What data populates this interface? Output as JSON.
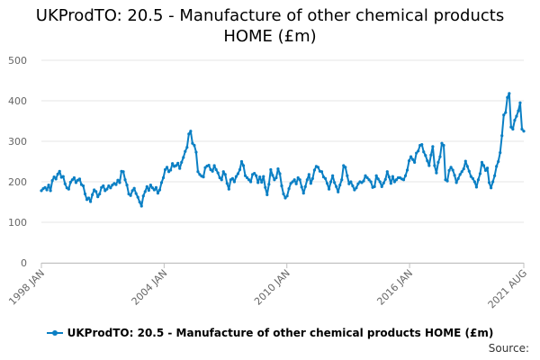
{
  "title": {
    "line1": "UKProdTO: 20.5 - Manufacture of other chemical products",
    "line2": "HOME (£m)"
  },
  "source_label": "Source:",
  "colors": {
    "series": "#0a7fc4",
    "grid": "#e6e6e6",
    "axis": "#666666",
    "title": "#000000"
  },
  "chart_data": {
    "type": "line",
    "title": "UKProdTO: 20.5 - Manufacture of other chemical products HOME (£m)",
    "xlabel": "",
    "ylabel": "",
    "ylim": [
      0,
      500
    ],
    "yticks": [
      0,
      100,
      200,
      300,
      400,
      500
    ],
    "x_start": "1998-01",
    "x_end": "2021-08",
    "xticks": [
      {
        "date": "1998-01",
        "label": "1998 JAN"
      },
      {
        "date": "2004-01",
        "label": "2004 JAN"
      },
      {
        "date": "2010-01",
        "label": "2010 JAN"
      },
      {
        "date": "2016-01",
        "label": "2016 JAN"
      },
      {
        "date": "2021-08",
        "label": "2021 AUG"
      }
    ],
    "grid": true,
    "legend_position": "bottom",
    "series": [
      {
        "name": "UKProdTO: 20.5 - Manufacture of other chemical products HOME (£m)",
        "color": "#0a7fc4",
        "frequency": "monthly",
        "values": [
          178,
          183,
          186,
          180,
          192,
          178,
          203,
          212,
          207,
          219,
          226,
          211,
          213,
          195,
          185,
          182,
          199,
          205,
          210,
          198,
          204,
          207,
          193,
          190,
          170,
          156,
          160,
          151,
          168,
          180,
          176,
          163,
          170,
          186,
          190,
          178,
          182,
          190,
          185,
          192,
          196,
          193,
          204,
          198,
          226,
          225,
          205,
          192,
          170,
          166,
          178,
          184,
          171,
          162,
          150,
          140,
          165,
          176,
          188,
          179,
          192,
          185,
          180,
          186,
          172,
          180,
          198,
          210,
          230,
          236,
          225,
          229,
          245,
          238,
          240,
          246,
          233,
          248,
          260,
          275,
          285,
          318,
          325,
          295,
          290,
          273,
          225,
          218,
          214,
          212,
          235,
          239,
          241,
          230,
          226,
          240,
          230,
          222,
          210,
          205,
          225,
          218,
          196,
          182,
          205,
          208,
          200,
          213,
          220,
          230,
          250,
          240,
          215,
          210,
          205,
          200,
          218,
          221,
          215,
          198,
          212,
          199,
          213,
          186,
          168,
          194,
          230,
          216,
          205,
          210,
          232,
          220,
          190,
          170,
          160,
          165,
          183,
          196,
          200,
          205,
          195,
          210,
          205,
          187,
          172,
          188,
          205,
          218,
          196,
          208,
          229,
          238,
          236,
          226,
          225,
          212,
          208,
          196,
          182,
          200,
          215,
          198,
          188,
          175,
          192,
          205,
          240,
          236,
          215,
          195,
          200,
          190,
          180,
          185,
          195,
          200,
          198,
          202,
          215,
          210,
          205,
          200,
          186,
          188,
          215,
          207,
          200,
          188,
          197,
          206,
          225,
          212,
          196,
          213,
          200,
          205,
          210,
          210,
          207,
          205,
          215,
          229,
          252,
          262,
          255,
          248,
          271,
          276,
          290,
          292,
          274,
          265,
          252,
          240,
          266,
          287,
          240,
          222,
          248,
          262,
          295,
          290,
          205,
          202,
          228,
          236,
          229,
          216,
          198,
          208,
          218,
          225,
          232,
          251,
          238,
          226,
          213,
          208,
          200,
          187,
          205,
          220,
          248,
          240,
          228,
          234,
          198,
          185,
          200,
          215,
          238,
          250,
          272,
          314,
          365,
          371,
          408,
          418,
          335,
          330,
          352,
          362,
          375,
          395,
          330,
          325
        ]
      }
    ]
  }
}
